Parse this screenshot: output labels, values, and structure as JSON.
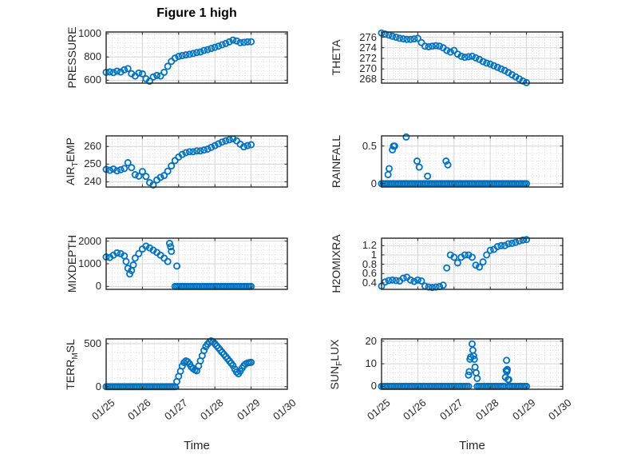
{
  "figure": {
    "title": "Figure 1 high",
    "xlabel": "Time",
    "background": "#ffffff"
  },
  "colors": {
    "marker": "#0072BD",
    "axis": "#262626",
    "grid_major": "#d3d3d3",
    "grid_minor": "#d9d9d9",
    "text": "#262626"
  },
  "x_axis": {
    "xlim": [
      0,
      5
    ],
    "tick_values": [
      0,
      1,
      2,
      3,
      4,
      5
    ],
    "tick_labels": [
      "01/25",
      "01/26",
      "01/27",
      "01/28",
      "01/29",
      "01/30"
    ],
    "minor_per_interval": 6,
    "label": "Time"
  },
  "chart_data": [
    {
      "name": "pressure",
      "type": "scatter",
      "grid_pos": [
        0,
        0
      ],
      "ylabel": {
        "pre": "PRESSURE",
        "sub": "",
        "post": ""
      },
      "yticks": [
        600,
        800,
        1000
      ],
      "ytick_labels": [
        "600",
        "800",
        "1000"
      ],
      "ylim": [
        575,
        1015
      ],
      "minor_div": 5,
      "series": [
        {
          "x_start": 0,
          "x_step": 0.1,
          "y": [
            668,
            672,
            666,
            678,
            671,
            690,
            700,
            656,
            636,
            662,
            655,
            612,
            592,
            628,
            641,
            636,
            668,
            720,
            762,
            790,
            805,
            812,
            818,
            823,
            830,
            838,
            843,
            856,
            863,
            873,
            883,
            893,
            905,
            916,
            930,
            945,
            938,
            923,
            926,
            930,
            931
          ]
        }
      ]
    },
    {
      "name": "theta",
      "type": "scatter",
      "grid_pos": [
        0,
        1
      ],
      "ylabel": {
        "pre": "THETA",
        "sub": "",
        "post": ""
      },
      "yticks": [
        268,
        270,
        272,
        274,
        276
      ],
      "ytick_labels": [
        "268",
        "270",
        "272",
        "274",
        "276"
      ],
      "ylim": [
        267.3,
        277.0
      ],
      "minor_div": 4,
      "series": [
        {
          "x_start": 0,
          "x_step": 0.1,
          "y": [
            276.8,
            276.6,
            276.4,
            276.2,
            276.0,
            275.8,
            275.7,
            275.6,
            275.6,
            275.7,
            275.8,
            275.0,
            274.3,
            274.2,
            274.3,
            274.4,
            274.3,
            274.0,
            273.5,
            273.2,
            273.5,
            272.8,
            272.4,
            272.2,
            272.3,
            272.4,
            272.1,
            271.8,
            271.4,
            271.1,
            270.9,
            270.6,
            270.3,
            270.0,
            269.7,
            269.3,
            268.9,
            268.5,
            268.1,
            267.7,
            267.4
          ]
        }
      ]
    },
    {
      "name": "air-temp",
      "type": "scatter",
      "grid_pos": [
        1,
        0
      ],
      "ylabel": {
        "pre": "AIR",
        "sub": "T",
        "post": "EMP"
      },
      "yticks": [
        240,
        250,
        260
      ],
      "ytick_labels": [
        "240",
        "250",
        "260"
      ],
      "ylim": [
        237,
        266
      ],
      "minor_div": 5,
      "series": [
        {
          "x_start": 0,
          "x_step": 0.1,
          "y": [
            247.0,
            246.5,
            247.2,
            246.2,
            246.8,
            247.5,
            250.8,
            248.0,
            244.0,
            243.2,
            245.8,
            243.0,
            239.5,
            238.2,
            241.0,
            242.5,
            243.5,
            246.0,
            249.0,
            252.0,
            254.0,
            255.5,
            256.5,
            257.0,
            257.0,
            257.5,
            257.5,
            258.0,
            258.5,
            259.5,
            260.5,
            261.5,
            262.5,
            263.2,
            263.8,
            264.3,
            263.2,
            261.3,
            259.8,
            260.5,
            261.0
          ]
        }
      ]
    },
    {
      "name": "rainfall",
      "type": "scatter",
      "grid_pos": [
        1,
        1
      ],
      "ylabel": {
        "pre": "RAINFALL",
        "sub": "",
        "post": ""
      },
      "yticks": [
        0,
        0.5
      ],
      "ytick_labels": [
        "0",
        "0.5"
      ],
      "ylim": [
        -0.045,
        0.635
      ],
      "minor_div": 5,
      "series": [
        {
          "x_start": 0,
          "x_end": 4.0,
          "x_step": 0.05,
          "y_const": 0
        },
        {
          "x": [
            0.18,
            0.21,
            0.3,
            0.33,
            0.36,
            0.68,
            0.98,
            1.04,
            1.27,
            1.78,
            1.83
          ],
          "y": [
            0.12,
            0.2,
            0.45,
            0.5,
            0.5,
            0.62,
            0.3,
            0.22,
            0.1,
            0.3,
            0.25
          ]
        }
      ]
    },
    {
      "name": "mixdepth",
      "type": "scatter",
      "grid_pos": [
        2,
        0
      ],
      "ylabel": {
        "pre": "MIXDEPTH",
        "sub": "",
        "post": ""
      },
      "yticks": [
        0,
        1000,
        2000
      ],
      "ytick_labels": [
        "0",
        "1000",
        "2000"
      ],
      "ylim": [
        -130,
        2130
      ],
      "minor_div": 5,
      "series": [
        {
          "x": [
            0,
            0.1,
            0.2,
            0.3,
            0.4,
            0.5,
            0.55,
            0.6,
            0.65,
            0.7,
            0.75,
            0.8,
            0.9,
            1.0,
            1.1,
            1.2,
            1.3,
            1.4,
            1.5,
            1.6,
            1.7,
            1.75,
            1.78,
            1.8,
            1.95
          ],
          "y": [
            1300,
            1280,
            1380,
            1480,
            1450,
            1350,
            1100,
            800,
            550,
            700,
            950,
            1250,
            1450,
            1650,
            1780,
            1700,
            1600,
            1500,
            1380,
            1250,
            1100,
            1900,
            1750,
            1550,
            900
          ]
        },
        {
          "x_start": 1.9,
          "x_end": 4.0,
          "x_step": 0.05,
          "y_const": 0
        }
      ]
    },
    {
      "name": "h2omixra",
      "type": "scatter",
      "grid_pos": [
        2,
        1
      ],
      "ylabel": {
        "pre": "H2OMIXRA",
        "sub": "",
        "post": ""
      },
      "yticks": [
        0.4,
        0.6,
        0.8,
        1,
        1.2
      ],
      "ytick_labels": [
        "0.4",
        "0.6",
        "0.8",
        "1",
        "1.2"
      ],
      "ylim": [
        0.26,
        1.36
      ],
      "minor_div": 4,
      "series": [
        {
          "x_start": 0,
          "x_step": 0.1,
          "y": [
            0.33,
            0.42,
            0.45,
            0.46,
            0.45,
            0.44,
            0.5,
            0.52,
            0.46,
            0.43,
            0.46,
            0.44,
            0.33,
            0.31,
            0.3,
            0.31,
            0.32,
            0.35,
            0.72,
            1.0,
            0.95,
            0.83,
            0.95,
            1.0,
            1.0,
            0.95,
            0.78,
            0.74,
            0.85,
            1.0,
            1.1,
            1.12,
            1.18,
            1.2,
            1.2,
            1.24,
            1.25,
            1.27,
            1.3,
            1.32,
            1.33
          ]
        }
      ]
    },
    {
      "name": "terr-msl",
      "type": "scatter",
      "grid_pos": [
        3,
        0
      ],
      "ylabel": {
        "pre": "TERR",
        "sub": "M",
        "post": "SL"
      },
      "yticks": [
        0,
        500
      ],
      "ytick_labels": [
        "0",
        "500"
      ],
      "ylim": [
        -30,
        555
      ],
      "minor_div": 5,
      "series": [
        {
          "x_start": 0,
          "x_end": 1.92,
          "x_step": 0.05,
          "y_const": 0
        },
        {
          "x_start": 1.95,
          "x_step": 0.05,
          "y": [
            60,
            120,
            180,
            240,
            280,
            300,
            290,
            265,
            230,
            210,
            195,
            185,
            240,
            300,
            360,
            420,
            465,
            495,
            520,
            532,
            520,
            500,
            475,
            450,
            425,
            400,
            375,
            350,
            325,
            298,
            272,
            245,
            205,
            170,
            150,
            180,
            215,
            245,
            265,
            275,
            280,
            283
          ]
        }
      ]
    },
    {
      "name": "sun-flux",
      "type": "scatter",
      "grid_pos": [
        3,
        1
      ],
      "ylabel": {
        "pre": "SUN",
        "sub": "F",
        "post": "LUX"
      },
      "yticks": [
        0,
        10,
        20
      ],
      "ytick_labels": [
        "0",
        "10",
        "20"
      ],
      "ylim": [
        -1.3,
        21
      ],
      "minor_div": 5,
      "series": [
        {
          "x_start": 0,
          "x_end": 2.4,
          "x_step": 0.05,
          "y_const": 0
        },
        {
          "x_start": 2.64,
          "x_end": 3.38,
          "x_step": 0.05,
          "y_const": 0
        },
        {
          "x_start": 3.5,
          "x_end": 4.0,
          "x_step": 0.05,
          "y_const": 0
        },
        {
          "x": [
            2.4,
            2.42,
            2.44,
            2.46,
            2.5,
            2.52,
            2.54,
            2.56,
            2.58,
            2.61,
            2.64
          ],
          "y": [
            5,
            6.5,
            12,
            13,
            18.8,
            16,
            13.5,
            12,
            8.5,
            6,
            3.5
          ]
        },
        {
          "x": [
            3.42,
            3.44,
            3.45,
            3.46,
            3.47,
            3.49,
            3.51
          ],
          "y": [
            4,
            7,
            11.5,
            6.5,
            7.5,
            3,
            3
          ]
        }
      ]
    }
  ]
}
